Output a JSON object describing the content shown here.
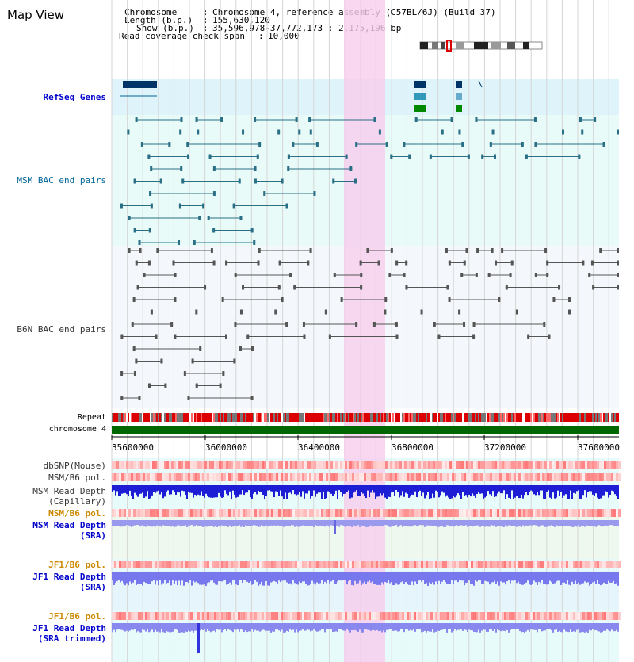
{
  "title": "Map View",
  "info": {
    "chromosome_key": "Chromosome",
    "chromosome_val": "Chromosome 4, reference assembly (C57BL/6J) (Build 37)",
    "length_key": "Length (b.p.)",
    "length_val": "155,630,120",
    "show_key": "Show (b.p.)",
    "show_val": "35,596,978-37,772,173 : 2,175,196 bp",
    "span_key": "Read coverage check span",
    "span_val": "10,000"
  },
  "tracks": {
    "refseq": "RefSeq Genes",
    "msm_bac": "MSM BAC end pairs",
    "b6n_bac": "B6N BAC end pairs",
    "repeat": "Repeat",
    "chromosome": "chromosome 4",
    "dbsnp": "dbSNP(Mouse)",
    "msm_pol": "MSM/B6 pol.",
    "msm_depth_cap_1": "MSM Read Depth",
    "msm_depth_cap_2": "(Capillary)",
    "msm_pol_2": "MSM/B6 pol.",
    "msm_depth_sra_1": "MSM Read Depth",
    "msm_depth_sra_2": "(SRA)",
    "jf1_pol": "JF1/B6 pol.",
    "jf1_depth_sra_1": "JF1 Read Depth",
    "jf1_depth_sra_2": "(SRA)",
    "jf1_pol_2": "JF1/B6 pol.",
    "jf1_depth_trim_1": "JF1 Read Depth",
    "jf1_depth_trim_2": "(SRA trimmed)"
  },
  "axis": {
    "ticks": [
      "35600000",
      "36000000",
      "36400000",
      "36800000",
      "37200000",
      "37600000"
    ]
  },
  "colors": {
    "refseq_label": "#0000cc",
    "msm_label": "#006699",
    "b6n_label": "#333333",
    "pol_orange": "#cc8800",
    "depth_blue": "#0000cc",
    "highlight": "#f7cdee",
    "chromosome_bar": "#006600"
  }
}
